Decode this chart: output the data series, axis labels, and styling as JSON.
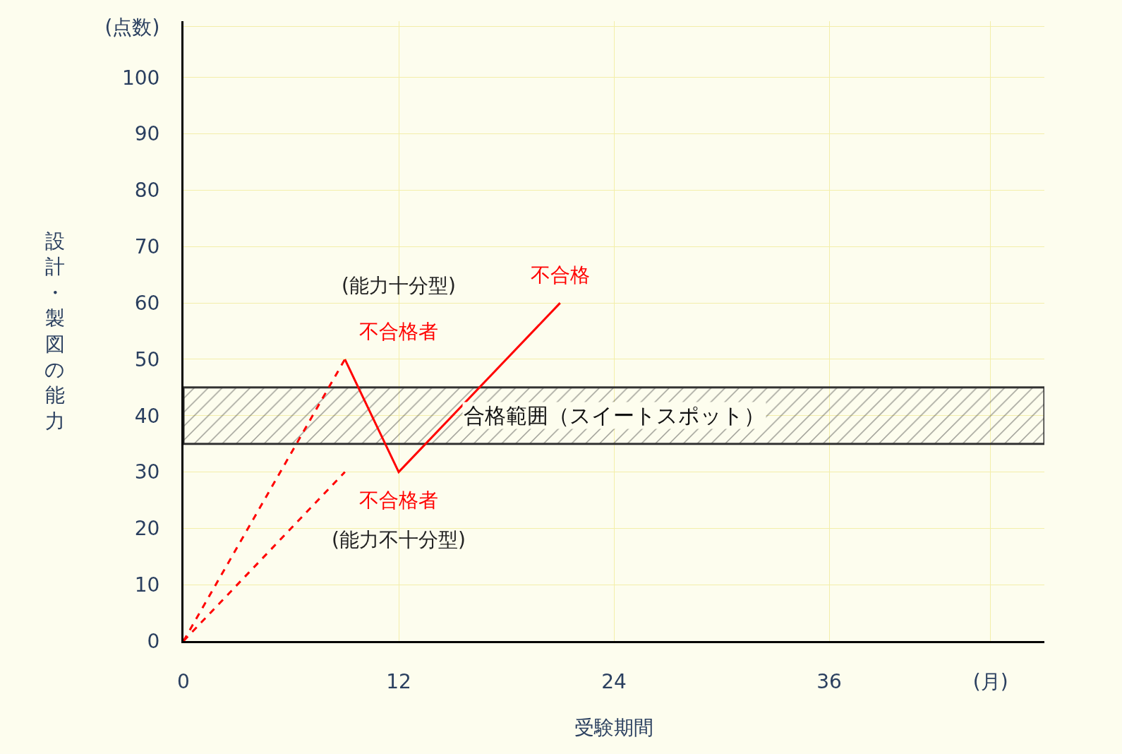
{
  "chart_data": {
    "type": "line",
    "xlabel": "受験期間",
    "ylabel": "設計・製図の能力",
    "series": [
      {
        "color": "#ff0000",
        "x": [
          0,
          9
        ],
        "values": [
          0,
          50
        ],
        "line_style": "dashed"
      },
      {
        "color": "#ff0000",
        "x": [
          0,
          9
        ],
        "values": [
          0,
          30
        ],
        "line_style": "dashed"
      },
      {
        "color": "#ff0000",
        "x": [
          9,
          12,
          21
        ],
        "values": [
          50,
          30,
          60
        ],
        "line_style": "solid"
      }
    ],
    "xlim": [
      0,
      48
    ],
    "ylim": [
      0,
      110
    ],
    "xticks": [
      0,
      12,
      24,
      36,
      {
        "value": 45,
        "label": "(月)"
      }
    ],
    "yticks": [
      0,
      10,
      20,
      30,
      40,
      50,
      60,
      70,
      80,
      90,
      100,
      {
        "value": 109,
        "label": "(点数)"
      }
    ],
    "bands": [
      {
        "axis": "y",
        "from": 35,
        "to": 45,
        "label": "合格範囲（スイートスポット）",
        "color": "#333333"
      }
    ],
    "annotations": [
      "(能力十分型)",
      "不合格者",
      "不合格",
      "不合格者",
      "(能力不十分型)"
    ],
    "grid": true,
    "marker": "none"
  }
}
